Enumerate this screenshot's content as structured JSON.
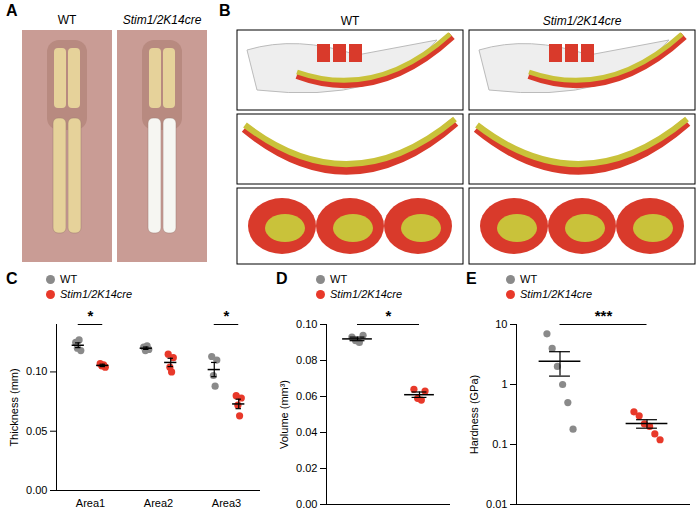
{
  "figure": {
    "image_panels": [
      {
        "panel": "A",
        "labels": [
          "WT",
          "Stim1/2K14cre"
        ]
      },
      {
        "panel": "B",
        "labels": [
          "WT",
          "Stim1/2K14cre"
        ]
      }
    ]
  },
  "chart_data": [
    {
      "panel": "C",
      "type": "scatter",
      "ylabel": "Thickness (mm)",
      "categories": [
        "Area1",
        "Area2",
        "Area3"
      ],
      "ylim": [
        0,
        0.14
      ],
      "yticks": [
        {
          "value": 0,
          "label": "0.00"
        },
        {
          "value": 0.05,
          "label": "0.05"
        },
        {
          "value": 0.1,
          "label": "0.10"
        }
      ],
      "legend": "top-left",
      "series": [
        {
          "name": "WT",
          "color": "#8a8a8a",
          "values": [
            [
              0.125,
              0.12,
              0.127,
              0.118
            ],
            [
              0.121,
              0.118,
              0.122,
              0.119
            ],
            [
              0.113,
              0.097,
              0.088,
              0.11
            ]
          ],
          "mean": [
            0.1225,
            0.12,
            0.102
          ],
          "error": [
            0.002,
            0.001,
            0.006
          ]
        },
        {
          "name": "Stim1/2K14cre",
          "color": "#e8392a",
          "values": [
            [
              0.107,
              0.105,
              0.106,
              0.104
            ],
            [
              0.115,
              0.104,
              0.1,
              0.112
            ],
            [
              0.08,
              0.072,
              0.063,
              0.078
            ]
          ],
          "mean": [
            0.1055,
            0.108,
            0.073
          ],
          "error": [
            0.001,
            0.0035,
            0.004
          ]
        }
      ],
      "annotations": [
        {
          "text": "*",
          "category": "Area1"
        },
        {
          "text": "*",
          "category": "Area3"
        }
      ]
    },
    {
      "panel": "D",
      "type": "scatter",
      "ylabel": "Volume (mm³)",
      "categories": [
        null
      ],
      "tick_labels": "y",
      "ylim": [
        0,
        0.1
      ],
      "yticks": [
        {
          "value": 0,
          "label": "0.00"
        },
        {
          "value": 0.02,
          "label": "0.02"
        },
        {
          "value": 0.04,
          "label": "0.04"
        },
        {
          "value": 0.06,
          "label": "0.06"
        },
        {
          "value": 0.08,
          "label": "0.08"
        },
        {
          "value": 0.1,
          "label": "0.10"
        }
      ],
      "legend": "top-left",
      "series": [
        {
          "name": "WT",
          "color": "#8a8a8a",
          "values": [
            [
              0.093,
              0.091,
              0.09,
              0.094
            ]
          ],
          "mean": [
            0.092
          ],
          "error": [
            0.001
          ]
        },
        {
          "name": "Stim1/2K14cre",
          "color": "#e8392a",
          "values": [
            [
              0.064,
              0.059,
              0.058,
              0.063
            ]
          ],
          "mean": [
            0.061
          ],
          "error": [
            0.0015
          ]
        }
      ],
      "annotations": [
        {
          "text": "*"
        }
      ]
    },
    {
      "panel": "E",
      "type": "scatter",
      "ylabel": "Hardness (GPa)",
      "categories": [
        null
      ],
      "tick_labels": "y",
      "log": "y",
      "ylim": [
        0.01,
        10
      ],
      "yticks": [
        0.01,
        0.1,
        1,
        10
      ],
      "legend": "top-left",
      "series": [
        {
          "name": "WT",
          "color": "#8a8a8a",
          "values": [
            [
              7.0,
              4.0,
              2.0,
              1.0,
              0.5,
              0.18
            ]
          ],
          "mean": [
            2.45
          ],
          "error": [
            1.07
          ]
        },
        {
          "name": "Stim1/2K14cre",
          "color": "#e8392a",
          "values": [
            [
              0.35,
              0.3,
              0.22,
              0.2,
              0.15,
              0.12
            ]
          ],
          "mean": [
            0.223
          ],
          "error": [
            0.036
          ]
        }
      ],
      "annotations": [
        {
          "text": "***"
        }
      ]
    }
  ]
}
